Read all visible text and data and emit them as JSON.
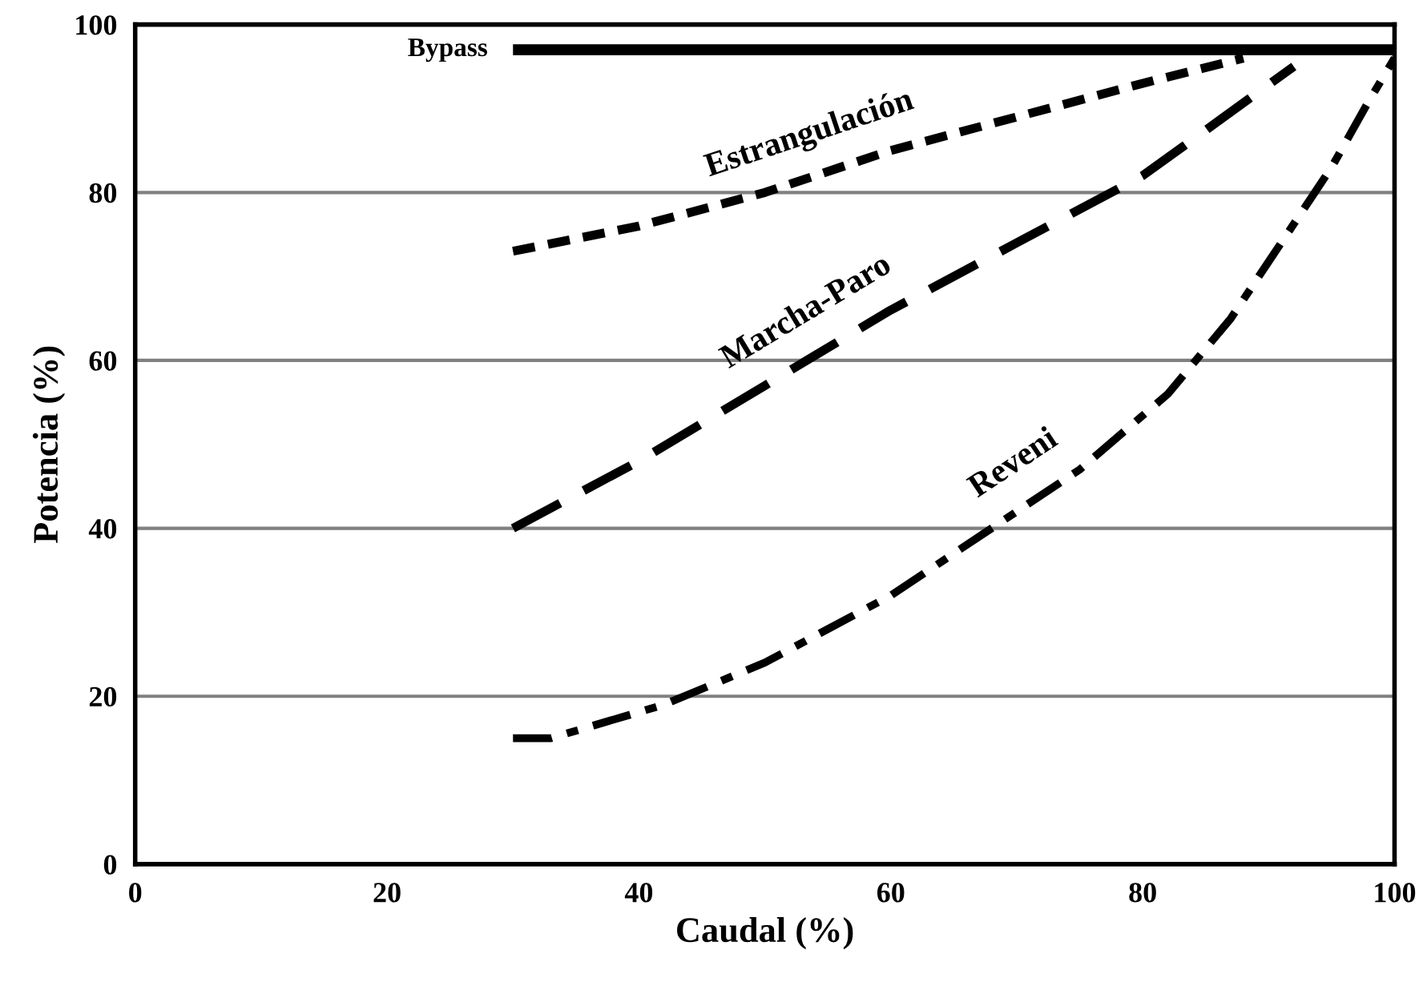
{
  "chart_data": {
    "type": "line",
    "xlabel": "Caudal (%)",
    "ylabel": "Potencia (%)",
    "xlim": [
      0,
      100
    ],
    "ylim": [
      0,
      100
    ],
    "xticks": [
      0,
      20,
      40,
      60,
      80,
      100
    ],
    "yticks": [
      0,
      20,
      40,
      60,
      80,
      100
    ],
    "grid": "y",
    "legend": false,
    "marker": "none",
    "series": [
      {
        "name": "Bypass",
        "color": "#000000",
        "line_style": "solid",
        "x": [
          30,
          100
        ],
        "values": [
          97,
          97
        ]
      },
      {
        "name": "Estrangulación",
        "color": "#000000",
        "line_style": "dotted",
        "x": [
          30,
          40,
          50,
          60,
          70,
          80,
          88
        ],
        "values": [
          73,
          76,
          80,
          85,
          89,
          93,
          96
        ]
      },
      {
        "name": "Marcha-Paro",
        "color": "#000000",
        "line_style": "dashed",
        "x": [
          30,
          40,
          50,
          60,
          70,
          80,
          92
        ],
        "values": [
          40,
          48,
          57,
          66,
          74,
          82,
          95
        ]
      },
      {
        "name": "Reveni",
        "color": "#000000",
        "line_style": "dashdot",
        "x": [
          30,
          33,
          42,
          50,
          60,
          68,
          75,
          82,
          87,
          91,
          95,
          98,
          100
        ],
        "values": [
          15,
          15,
          19,
          24,
          32,
          40,
          47,
          56,
          65,
          74,
          83,
          91,
          96
        ]
      }
    ]
  }
}
